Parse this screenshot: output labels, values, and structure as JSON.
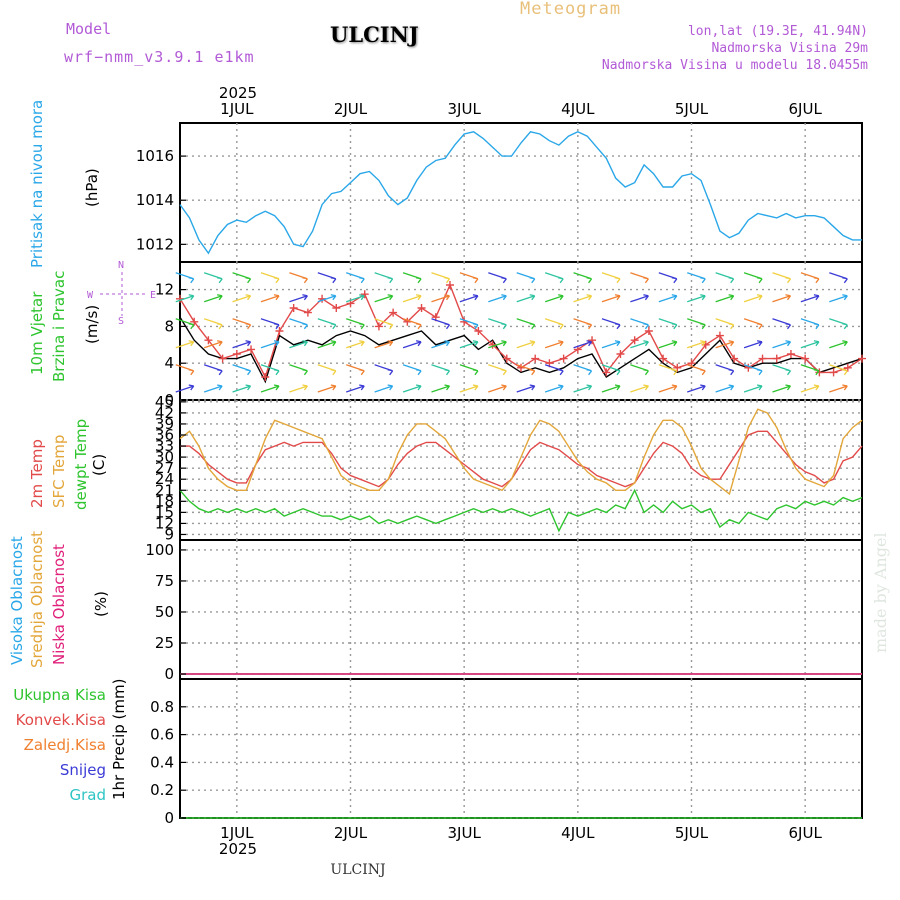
{
  "header": {
    "model_label": "Model",
    "model_name": "wrf−nmm_v3.9.1  e1km",
    "station": "ULCINJ",
    "product": "Meteogram",
    "lonlat": "lon,lat (19.3E, 41.94N)",
    "altitude": "Nadmorska Visina 29m",
    "model_altitude": "Nadmorska Visina u modelu 18.0455m",
    "watermark": "made by Angel",
    "footer": "ULCINJ",
    "colors": {
      "violet": "#b25ad6",
      "meteogram": "#e8c07a"
    }
  },
  "time_axis": {
    "year": "2025",
    "day_labels": [
      "1JUL",
      "2JUL",
      "3JUL",
      "4JUL",
      "5JUL",
      "6JUL"
    ],
    "start": "2025-06-30 12:00",
    "end": "2025-07-06 12:00"
  },
  "panels": {
    "pressure": {
      "label": "Pritisak na nivou mora",
      "unit": "(hPa)",
      "color": "#2aa7e8"
    },
    "wind": {
      "label_1": "10m Vjetar",
      "label_2": "Brzina i Pravac",
      "unit": "(m/s)",
      "compass": {
        "n": "N",
        "s": "S",
        "e": "E",
        "w": "W"
      }
    },
    "temperature": {
      "label_t2": "2m Temp",
      "color_t2": "#e24a4a",
      "label_sfc": "SFC Temp",
      "color_sfc": "#e3a63a",
      "label_dew": "dewpt Temp",
      "color_dew": "#2ec42e",
      "unit": "(C)"
    },
    "cloud": {
      "label_high": "Visoka Oblacnost",
      "color_high": "#2aa7e8",
      "label_mid": "Srednja Oblacnost",
      "color_mid": "#e3a63a",
      "label_low": "Niska Oblacnost",
      "color_low": "#e0207a",
      "unit": "(%)"
    },
    "precip": {
      "label_total": "Ukupna Kisa",
      "color_total": "#2ec42e",
      "label_conv": "Konvek.Kisa",
      "color_conv": "#e24a4a",
      "label_frz": "Zaledj.Kisa",
      "color_frz": "#f08030",
      "label_snow": "Snijeg",
      "color_snow": "#3b3bd6",
      "label_grad": "Grad",
      "color_grad": "#2ec4c4",
      "unit": "1hr Precip (mm)"
    }
  },
  "chart_data": [
    {
      "type": "line",
      "ylabel": "(hPa)",
      "ylim": [
        1011.2,
        1017.5
      ],
      "yticks": [
        1012,
        1014,
        1016
      ],
      "grid": true,
      "x": [
        0,
        2,
        4,
        6,
        8,
        10,
        12,
        14,
        16,
        18,
        20,
        22,
        24,
        26,
        28,
        30,
        32,
        34,
        36,
        38,
        40,
        42,
        44,
        46,
        48,
        50,
        52,
        54,
        56,
        58,
        60,
        62,
        64,
        66,
        68,
        70,
        72,
        74,
        76,
        78,
        80,
        82,
        84,
        86,
        88,
        90,
        92,
        94,
        96,
        98,
        100,
        102,
        104,
        106,
        108,
        110,
        112,
        114,
        116,
        118,
        120,
        122,
        124,
        126,
        128,
        130,
        132,
        134,
        136,
        138,
        140,
        142,
        144
      ],
      "series": [
        {
          "values": [
            1013.8,
            1013.2,
            1012.2,
            1011.6,
            1012.4,
            1012.9,
            1013.1,
            1013.0,
            1013.3,
            1013.5,
            1013.3,
            1012.8,
            1012.0,
            1011.9,
            1012.6,
            1013.8,
            1014.3,
            1014.4,
            1014.8,
            1015.2,
            1015.3,
            1014.9,
            1014.2,
            1013.8,
            1014.1,
            1014.9,
            1015.5,
            1015.8,
            1015.9,
            1016.5,
            1017.0,
            1017.1,
            1016.8,
            1016.4,
            1016.0,
            1016.0,
            1016.6,
            1017.1,
            1017.0,
            1016.7,
            1016.5,
            1016.9,
            1017.1,
            1016.9,
            1016.4,
            1015.9,
            1015.0,
            1014.6,
            1014.8,
            1015.6,
            1015.2,
            1014.6,
            1014.6,
            1015.1,
            1015.2,
            1014.9,
            1013.8,
            1012.6,
            1012.3,
            1012.5,
            1013.1,
            1013.4,
            1013.3,
            1013.2,
            1013.4,
            1013.2,
            1013.3,
            1013.3,
            1013.2,
            1012.8,
            1012.4,
            1012.2,
            1012.2
          ]
        }
      ]
    },
    {
      "type": "line",
      "ylabel": "(m/s)",
      "ylim": [
        0,
        15
      ],
      "yticks": [
        0,
        4,
        8,
        12
      ],
      "grid": true,
      "x": [
        0,
        3,
        6,
        9,
        12,
        15,
        18,
        21,
        24,
        27,
        30,
        33,
        36,
        39,
        42,
        45,
        48,
        51,
        54,
        57,
        60,
        63,
        66,
        69,
        72,
        75,
        78,
        81,
        84,
        87,
        90,
        93,
        96,
        99,
        102,
        105,
        108,
        111,
        114,
        117,
        120,
        123,
        126,
        129,
        132,
        135,
        138,
        141,
        144
      ],
      "series": [
        {
          "values": [
            9.0,
            6.5,
            5.0,
            4.5,
            4.5,
            5.0,
            2.0,
            7.0,
            6.0,
            6.5,
            6.0,
            7.0,
            7.5,
            7.0,
            6.0,
            6.5,
            7.0,
            7.5,
            6.0,
            6.5,
            7.0,
            5.5,
            6.5,
            4.0,
            3.0,
            3.5,
            3.0,
            3.5,
            4.5,
            5.0,
            2.5,
            3.5,
            4.5,
            5.5,
            4.0,
            3.0,
            3.5,
            5.0,
            6.5,
            4.0,
            3.5,
            4.0,
            4.0,
            4.5,
            4.5,
            3.0,
            3.5,
            4.0,
            4.5
          ]
        },
        {
          "values": [
            11.0,
            8.5,
            6.5,
            4.5,
            5.0,
            5.5,
            2.5,
            7.5,
            10.0,
            9.5,
            11.0,
            10.0,
            10.5,
            11.5,
            8.0,
            9.5,
            8.5,
            10.0,
            9.0,
            12.5,
            8.5,
            7.5,
            6.0,
            4.5,
            3.5,
            4.5,
            4.0,
            4.5,
            5.5,
            6.5,
            3.0,
            5.0,
            6.5,
            7.5,
            4.5,
            3.5,
            4.0,
            6.0,
            7.0,
            4.5,
            3.5,
            4.5,
            4.5,
            5.0,
            4.5,
            3.0,
            3.0,
            3.5,
            4.5
          ]
        }
      ]
    },
    {
      "type": "line",
      "ylabel": "(C)",
      "ylim": [
        7.5,
        45.5
      ],
      "yticks": [
        9,
        12,
        15,
        18,
        21,
        24,
        27,
        30,
        33,
        36,
        39,
        42,
        45
      ],
      "grid": true,
      "x": [
        0,
        2,
        4,
        6,
        8,
        10,
        12,
        14,
        16,
        18,
        20,
        22,
        24,
        26,
        28,
        30,
        32,
        34,
        36,
        38,
        40,
        42,
        44,
        46,
        48,
        50,
        52,
        54,
        56,
        58,
        60,
        62,
        64,
        66,
        68,
        70,
        72,
        74,
        76,
        78,
        80,
        82,
        84,
        86,
        88,
        90,
        92,
        94,
        96,
        98,
        100,
        102,
        104,
        106,
        108,
        110,
        112,
        114,
        116,
        118,
        120,
        122,
        124,
        126,
        128,
        130,
        132,
        134,
        136,
        138,
        140,
        142,
        144
      ],
      "series": [
        {
          "values": [
            33,
            33,
            31,
            28,
            26,
            24,
            23,
            23,
            28,
            32,
            33,
            34,
            33,
            34,
            34,
            34,
            31,
            27,
            25,
            24,
            23,
            22,
            24,
            28,
            31,
            33,
            34,
            34,
            32,
            30,
            28,
            26,
            24,
            23,
            22,
            24,
            28,
            32,
            34,
            33,
            32,
            30,
            28,
            27,
            25,
            24,
            23,
            22,
            23,
            27,
            31,
            34,
            33,
            31,
            27,
            25,
            24,
            24,
            28,
            32,
            36,
            37,
            37,
            34,
            31,
            28,
            26,
            25,
            23,
            24,
            29,
            30,
            33
          ]
        },
        {
          "values": [
            35,
            37,
            33,
            27,
            24,
            22,
            21,
            21,
            28,
            35,
            40,
            39,
            38,
            37,
            36,
            35,
            30,
            25,
            23,
            22,
            21,
            21,
            24,
            31,
            36,
            39,
            39,
            37,
            35,
            31,
            27,
            24,
            23,
            22,
            21,
            24,
            30,
            36,
            40,
            39,
            37,
            33,
            29,
            26,
            24,
            23,
            21,
            21,
            23,
            30,
            36,
            40,
            40,
            38,
            33,
            27,
            24,
            22,
            20,
            29,
            38,
            43,
            42,
            38,
            32,
            27,
            24,
            23,
            22,
            25,
            35,
            38,
            40
          ]
        },
        {
          "values": [
            21,
            18,
            16,
            15,
            16,
            15,
            16,
            15,
            16,
            15,
            16,
            14,
            15,
            16,
            15,
            14,
            14,
            13,
            14,
            13,
            14,
            12,
            13,
            12,
            13,
            14,
            13,
            12,
            13,
            14,
            15,
            16,
            15,
            16,
            15,
            16,
            15,
            14,
            15,
            16,
            10,
            15,
            14,
            15,
            16,
            15,
            17,
            16,
            21,
            15,
            17,
            15,
            18,
            16,
            17,
            15,
            16,
            11,
            13,
            12,
            15,
            14,
            13,
            16,
            17,
            16,
            18,
            17,
            18,
            17,
            19,
            18,
            19
          ]
        }
      ]
    },
    {
      "type": "line",
      "ylabel": "(%)",
      "ylim": [
        -4,
        108
      ],
      "yticks": [
        0,
        25,
        50,
        75,
        100
      ],
      "grid": true,
      "series": [
        {
          "values": [
            0,
            0
          ]
        },
        {
          "values": [
            0,
            0
          ]
        },
        {
          "values": [
            0,
            0
          ]
        }
      ]
    },
    {
      "type": "line",
      "ylabel": "1hr Precip (mm)",
      "ylim": [
        0,
        1.0
      ],
      "yticks": [
        0,
        0.2,
        0.4,
        0.6,
        0.8
      ],
      "grid": true,
      "series": [
        {
          "values": [
            0,
            0
          ]
        }
      ]
    }
  ]
}
